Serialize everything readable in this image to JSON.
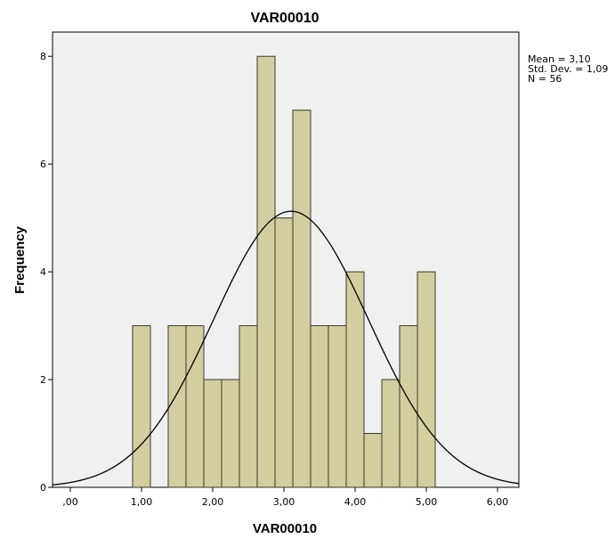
{
  "chart_data": {
    "type": "bar",
    "title": "VAR00010",
    "xlabel": "VAR00010",
    "ylabel": "Frequency",
    "xlim": [
      -0.25,
      6.3
    ],
    "ylim": [
      0,
      8.45
    ],
    "x_ticks": [
      {
        "value": 0,
        "label": ",00"
      },
      {
        "value": 1,
        "label": "1,00"
      },
      {
        "value": 2,
        "label": "2,00"
      },
      {
        "value": 3,
        "label": "3,00"
      },
      {
        "value": 4,
        "label": "4,00"
      },
      {
        "value": 5,
        "label": "5,00"
      },
      {
        "value": 6,
        "label": "6,00"
      }
    ],
    "y_ticks": [
      {
        "value": 0,
        "label": "0"
      },
      {
        "value": 2,
        "label": "2"
      },
      {
        "value": 4,
        "label": "4"
      },
      {
        "value": 6,
        "label": "6"
      },
      {
        "value": 8,
        "label": "8"
      }
    ],
    "bins": [
      {
        "start": 0.875,
        "end": 1.125,
        "count": 3
      },
      {
        "start": 1.375,
        "end": 1.625,
        "count": 3
      },
      {
        "start": 1.625,
        "end": 1.875,
        "count": 3
      },
      {
        "start": 1.875,
        "end": 2.125,
        "count": 2
      },
      {
        "start": 2.125,
        "end": 2.375,
        "count": 2
      },
      {
        "start": 2.375,
        "end": 2.625,
        "count": 3
      },
      {
        "start": 2.625,
        "end": 2.875,
        "count": 8
      },
      {
        "start": 2.875,
        "end": 3.125,
        "count": 5
      },
      {
        "start": 3.125,
        "end": 3.375,
        "count": 7
      },
      {
        "start": 3.375,
        "end": 3.625,
        "count": 3
      },
      {
        "start": 3.625,
        "end": 3.875,
        "count": 3
      },
      {
        "start": 3.875,
        "end": 4.125,
        "count": 4
      },
      {
        "start": 4.125,
        "end": 4.375,
        "count": 1
      },
      {
        "start": 4.375,
        "end": 4.625,
        "count": 2
      },
      {
        "start": 4.625,
        "end": 4.875,
        "count": 3
      },
      {
        "start": 4.875,
        "end": 5.125,
        "count": 4
      }
    ],
    "normal_curve": {
      "mean": 3.1,
      "std_dev": 1.09,
      "n": 56,
      "bin_width": 0.25
    },
    "stats": [
      "Mean = 3,10",
      "Std. Dev. = 1,09",
      "N = 56"
    ],
    "colors": {
      "bar_fill": "#d3ce9f",
      "bar_stroke": "#3a3a2a",
      "plot_bg": "#f0f0f0",
      "curve": "#000000"
    },
    "grid": false
  }
}
